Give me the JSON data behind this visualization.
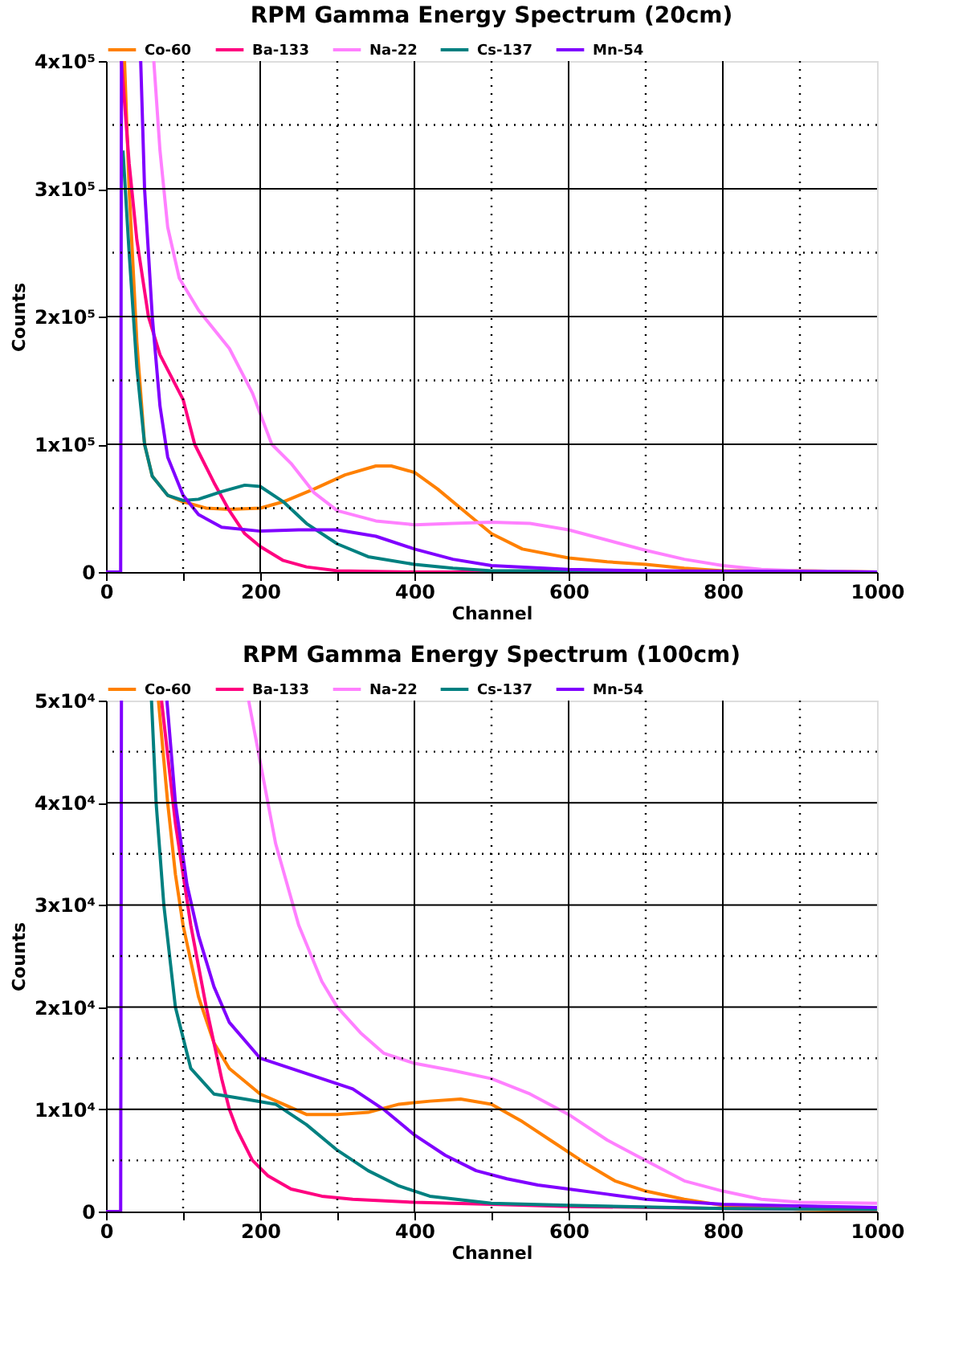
{
  "chart_data": [
    {
      "type": "line",
      "title": "RPM Gamma Energy Spectrum (20cm)",
      "xlabel": "Channel",
      "ylabel": "Counts",
      "legend": "top",
      "grid": true,
      "line_style": "solid",
      "marker": "none",
      "xlim": [
        0,
        1000
      ],
      "xticks": [
        0,
        {
          "value": 100,
          "label": null
        },
        200,
        {
          "value": 300,
          "label": null
        },
        400,
        {
          "value": 500,
          "label": null
        },
        600,
        {
          "value": 700,
          "label": null
        },
        800,
        {
          "value": 900,
          "label": null
        },
        1000
      ],
      "ylim": [
        0,
        400000
      ],
      "yticks": [
        0,
        {
          "value": 50000,
          "label": null
        },
        {
          "value": 100000,
          "label": "1x10⁵"
        },
        {
          "value": 150000,
          "label": null
        },
        {
          "value": 200000,
          "label": "2x10⁵"
        },
        {
          "value": 250000,
          "label": null
        },
        {
          "value": 300000,
          "label": "3x10⁵"
        },
        {
          "value": 350000,
          "label": null
        },
        {
          "value": 400000,
          "label": "4x10⁵"
        }
      ],
      "series": [
        {
          "name": "Co-60",
          "color": "#ff8000",
          "x": [
            24,
            30,
            40,
            50,
            60,
            80,
            100,
            130,
            160,
            200,
            230,
            270,
            310,
            350,
            370,
            400,
            430,
            470,
            500,
            540,
            600,
            650,
            700,
            750,
            800,
            900,
            1000
          ],
          "values": [
            400000,
            300000,
            180000,
            100000,
            75000,
            60000,
            55000,
            50000,
            49000,
            50000,
            55000,
            65000,
            76000,
            83000,
            83000,
            78000,
            65000,
            45000,
            30000,
            18000,
            11000,
            8000,
            6000,
            3000,
            1000,
            1000,
            0
          ]
        },
        {
          "name": "Ba-133",
          "color": "#ff0080",
          "x": [
            20,
            30,
            40,
            55,
            70,
            100,
            115,
            140,
            160,
            180,
            200,
            230,
            260,
            300,
            400,
            500,
            1000
          ],
          "values": [
            400000,
            320000,
            260000,
            200000,
            170000,
            135000,
            100000,
            70000,
            48000,
            30000,
            20000,
            9000,
            4000,
            1000,
            0,
            0,
            0
          ]
        },
        {
          "name": "Na-22",
          "color": "#ff80ff",
          "x": [
            62,
            70,
            80,
            95,
            120,
            160,
            190,
            215,
            240,
            270,
            300,
            350,
            400,
            450,
            500,
            550,
            600,
            650,
            700,
            750,
            800,
            850,
            900,
            1000
          ],
          "values": [
            400000,
            330000,
            270000,
            230000,
            205000,
            175000,
            140000,
            100000,
            85000,
            62000,
            48000,
            40000,
            37000,
            38000,
            39000,
            38000,
            33000,
            25000,
            17000,
            10000,
            5000,
            2000,
            1000,
            0
          ]
        },
        {
          "name": "Cs-137",
          "color": "#008080",
          "x": [
            22,
            30,
            40,
            50,
            60,
            80,
            100,
            120,
            150,
            180,
            200,
            230,
            260,
            300,
            340,
            400,
            450,
            500,
            600,
            1000
          ],
          "values": [
            330000,
            250000,
            160000,
            100000,
            75000,
            60000,
            56000,
            57000,
            63000,
            68000,
            67000,
            55000,
            38000,
            22000,
            12000,
            6000,
            3000,
            1000,
            1000,
            0
          ]
        },
        {
          "name": "Mn-54",
          "color": "#8000ff",
          "x": [
            0,
            19,
            20,
            30,
            45,
            50,
            60,
            70,
            80,
            100,
            120,
            150,
            200,
            250,
            300,
            350,
            400,
            450,
            500,
            600,
            700,
            1000
          ],
          "values": [
            0,
            0,
            400000,
            null,
            400000,
            300000,
            200000,
            130000,
            90000,
            60000,
            45000,
            35000,
            32000,
            33000,
            33000,
            28000,
            18000,
            10000,
            5000,
            2000,
            1000,
            0
          ]
        }
      ]
    },
    {
      "type": "line",
      "title": "RPM Gamma Energy Spectrum (100cm)",
      "xlabel": "Channel",
      "ylabel": "Counts",
      "legend": "top",
      "grid": true,
      "line_style": "solid",
      "marker": "none",
      "xlim": [
        0,
        1000
      ],
      "xticks": [
        0,
        {
          "value": 100,
          "label": null
        },
        200,
        {
          "value": 300,
          "label": null
        },
        400,
        {
          "value": 500,
          "label": null
        },
        600,
        {
          "value": 700,
          "label": null
        },
        800,
        {
          "value": 900,
          "label": null
        },
        1000
      ],
      "ylim": [
        0,
        50000
      ],
      "yticks": [
        0,
        {
          "value": 5000,
          "label": null
        },
        {
          "value": 10000,
          "label": "1x10⁴"
        },
        {
          "value": 15000,
          "label": null
        },
        {
          "value": 20000,
          "label": "2x10⁴"
        },
        {
          "value": 25000,
          "label": null
        },
        {
          "value": 30000,
          "label": "3x10⁴"
        },
        {
          "value": 35000,
          "label": null
        },
        {
          "value": 40000,
          "label": "4x10⁴"
        },
        {
          "value": 45000,
          "label": null
        },
        {
          "value": 50000,
          "label": "5x10⁴"
        }
      ],
      "series": [
        {
          "name": "Co-60",
          "color": "#ff8000",
          "x": [
            68,
            80,
            90,
            100,
            120,
            140,
            160,
            200,
            230,
            260,
            300,
            340,
            380,
            420,
            460,
            500,
            540,
            580,
            620,
            660,
            700,
            750,
            800,
            900,
            1000
          ],
          "values": [
            50000,
            40000,
            33000,
            28000,
            21000,
            16500,
            14000,
            11500,
            10500,
            9500,
            9500,
            9700,
            10500,
            10800,
            11000,
            10500,
            8800,
            6800,
            4800,
            3000,
            2000,
            1200,
            600,
            200,
            100
          ]
        },
        {
          "name": "Ba-133",
          "color": "#ff0080",
          "x": [
            72,
            90,
            110,
            130,
            150,
            160,
            170,
            190,
            210,
            240,
            280,
            320,
            400,
            500,
            600,
            800,
            1000
          ],
          "values": [
            50000,
            38000,
            28000,
            20000,
            13000,
            10000,
            8000,
            5000,
            3500,
            2200,
            1500,
            1200,
            900,
            700,
            500,
            300,
            200
          ]
        },
        {
          "name": "Na-22",
          "color": "#ff80ff",
          "x": [
            185,
            200,
            220,
            250,
            280,
            300,
            330,
            360,
            400,
            450,
            500,
            550,
            600,
            650,
            700,
            750,
            800,
            850,
            900,
            1000
          ],
          "values": [
            50000,
            44000,
            36000,
            28000,
            22500,
            20000,
            17500,
            15500,
            14500,
            13800,
            13000,
            11500,
            9500,
            7000,
            5000,
            3000,
            2000,
            1200,
            900,
            800
          ]
        },
        {
          "name": "Cs-137",
          "color": "#008080",
          "x": [
            59,
            65,
            75,
            90,
            110,
            140,
            180,
            220,
            260,
            300,
            340,
            380,
            420,
            500,
            600,
            800,
            1000
          ],
          "values": [
            50000,
            40000,
            30000,
            20000,
            14000,
            11500,
            11000,
            10500,
            8500,
            6000,
            4000,
            2500,
            1500,
            800,
            600,
            300,
            200
          ]
        },
        {
          "name": "Mn-54",
          "color": "#8000ff",
          "x": [
            0,
            19,
            20,
            40,
            79,
            90,
            105,
            120,
            140,
            160,
            200,
            240,
            280,
            320,
            360,
            400,
            440,
            480,
            520,
            560,
            600,
            650,
            700,
            800,
            1000
          ],
          "values": [
            0,
            0,
            50000,
            null,
            50000,
            40000,
            32000,
            27000,
            22000,
            18500,
            15000,
            14000,
            13000,
            12000,
            10000,
            7500,
            5500,
            4000,
            3200,
            2600,
            2200,
            1700,
            1200,
            700,
            400
          ]
        }
      ]
    }
  ]
}
